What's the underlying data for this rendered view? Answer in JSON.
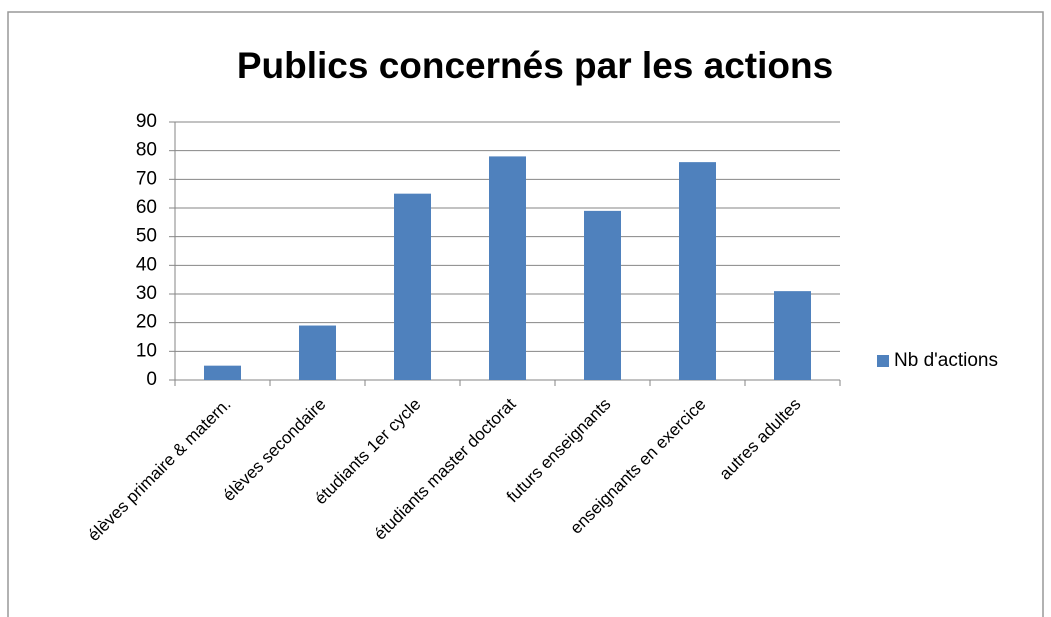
{
  "chart_data": {
    "type": "bar",
    "title": "Publics concernés par les actions",
    "categories": [
      "élèves primaire & matern.",
      "élèves secondaire",
      "étudiants 1er cycle",
      "étudiants master doctorat",
      "futurs enseignants",
      "enseignants en exercice",
      "autres adultes"
    ],
    "series": [
      {
        "name": "Nb d'actions",
        "color": "#4f81bd",
        "values": [
          5,
          19,
          65,
          78,
          59,
          76,
          31
        ]
      }
    ],
    "ylim": [
      0,
      90
    ],
    "yticks": [
      0,
      10,
      20,
      30,
      40,
      50,
      60,
      70,
      80,
      90
    ],
    "grid": true,
    "legend": "right"
  }
}
